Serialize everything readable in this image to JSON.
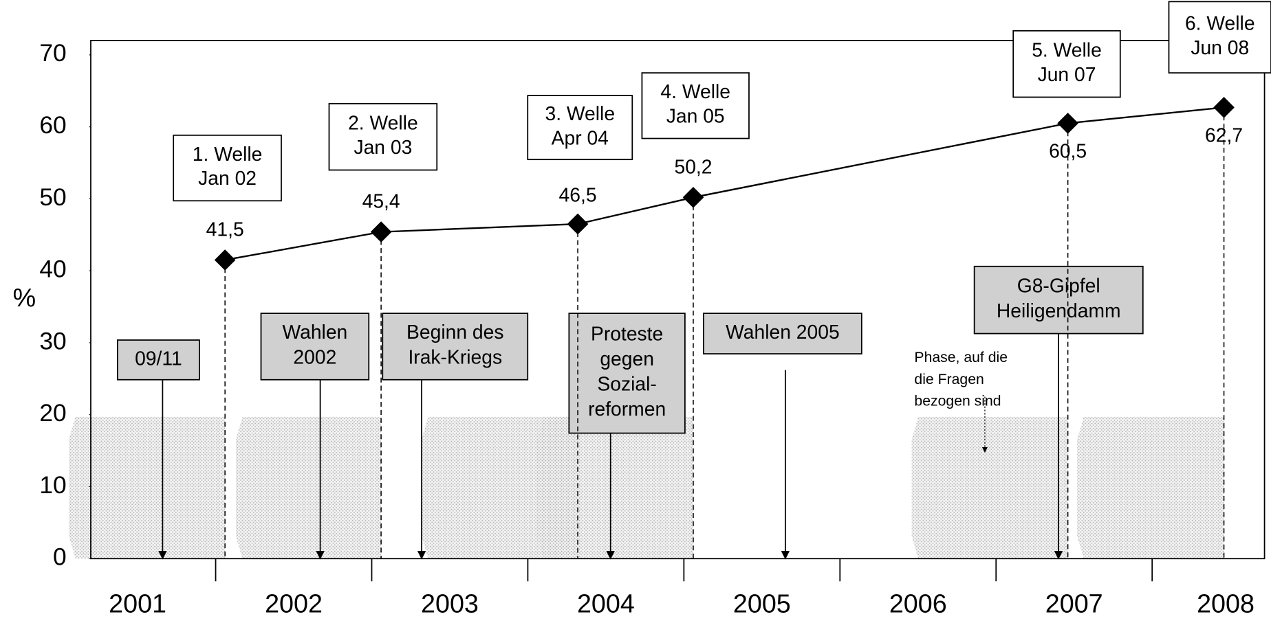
{
  "chart_data": {
    "type": "line",
    "y_label": "%",
    "x": [
      2002.06,
      2003.06,
      2004.32,
      2005.06,
      2007.46,
      2008.46
    ],
    "waves": [
      "1. Welle\nJan 02",
      "2. Welle\nJan 03",
      "3. Welle\nApr 04",
      "4. Welle\nJan 05",
      "5. Welle\nJun 07",
      "6. Welle\nJun 08"
    ],
    "series": [
      {
        "color": "#000000",
        "values": [
          41.5,
          45.4,
          46.5,
          50.2,
          60.5,
          62.7
        ],
        "value_labels": [
          "41,5",
          "45,4",
          "46,5",
          "50,2",
          "60,5",
          "62,7"
        ]
      }
    ],
    "xlim": [
      2001.2,
      2008.72
    ],
    "xticks": [
      2002,
      2003,
      2004,
      2005,
      2006,
      2007,
      2008
    ],
    "year_labels": [
      "2001",
      "2002",
      "2003",
      "2004",
      "2005",
      "2006",
      "2007",
      "2008"
    ],
    "ylim": [
      0,
      72
    ],
    "yticks": [
      0,
      10,
      20,
      30,
      40,
      50,
      60,
      70
    ],
    "events": [
      {
        "label": "09/11",
        "x": 2001.66
      },
      {
        "label": "Wahlen\n2002",
        "x": 2002.67
      },
      {
        "label": "Beginn des\nIrak-Kriegs",
        "x": 2003.32
      },
      {
        "label": "Proteste\ngegen\nSozial-\nreformen",
        "x": 2004.53
      },
      {
        "label": "Wahlen 2005",
        "x": 2005.65
      },
      {
        "label": "G8-Gipfel\nHeiligendamm",
        "x": 2007.4
      }
    ],
    "phases": [
      {
        "start": 2001.06,
        "end": 2002.06
      },
      {
        "start": 2002.13,
        "end": 2003.06
      },
      {
        "start": 2003.32,
        "end": 2004.32
      },
      {
        "start": 2004.06,
        "end": 2005.06
      },
      {
        "start": 2006.46,
        "end": 2007.46
      },
      {
        "start": 2007.52,
        "end": 2008.46
      }
    ],
    "phase_height": 19.7,
    "phase_note": "Phase, auf die\ndie Fragen\nbezogen sind",
    "phase_note_arrow_to": 14.8
  }
}
